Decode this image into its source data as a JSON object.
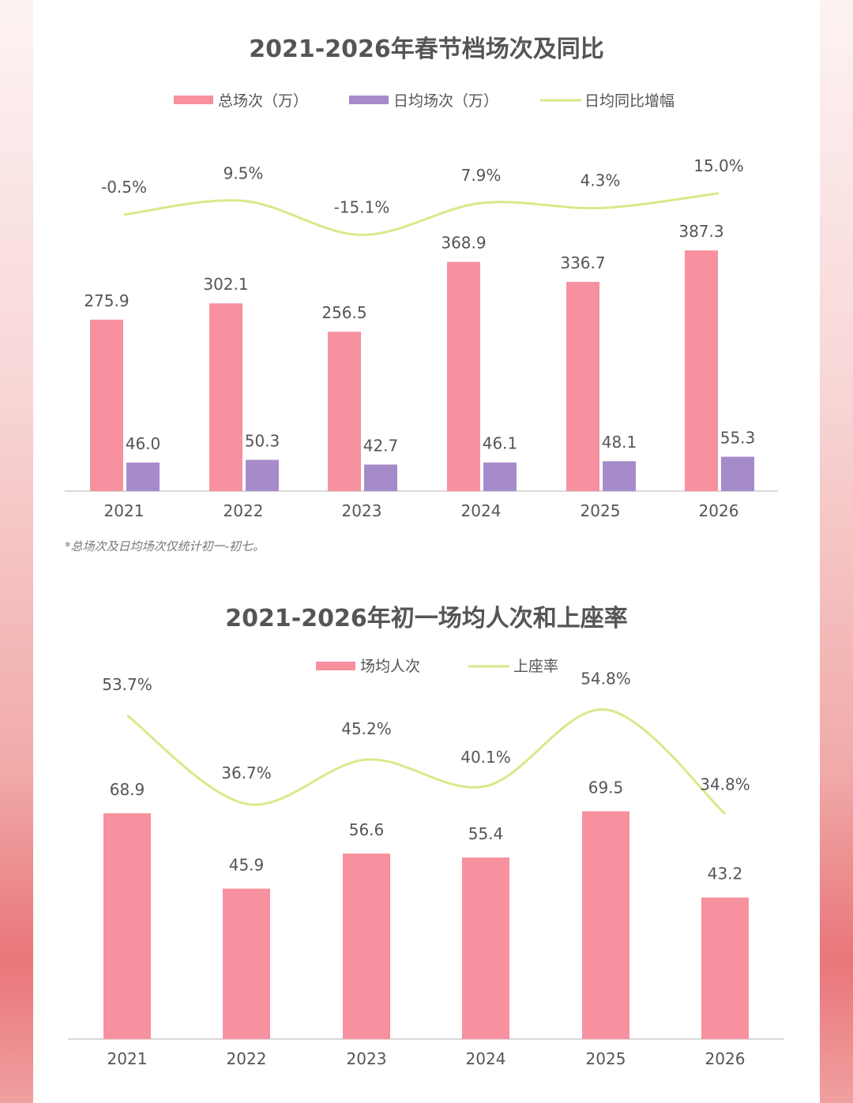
{
  "chart_data": [
    {
      "type": "bar+line",
      "title": "2021-2026年春节档场次及同比",
      "categories": [
        "2021",
        "2022",
        "2023",
        "2024",
        "2025",
        "2026"
      ],
      "series": [
        {
          "name": "总场次（万）",
          "kind": "bar",
          "color": "#f7909f",
          "values": [
            275.9,
            302.1,
            256.5,
            368.9,
            336.7,
            387.3
          ],
          "labels": [
            "275.9",
            "302.1",
            "256.5",
            "368.9",
            "336.7",
            "387.3"
          ]
        },
        {
          "name": "日均场次（万）",
          "kind": "bar",
          "color": "#a68bcb",
          "values": [
            46.0,
            50.3,
            42.7,
            46.1,
            48.1,
            55.3
          ],
          "labels": [
            "46.0",
            "50.3",
            "42.7",
            "46.1",
            "48.1",
            "55.3"
          ]
        },
        {
          "name": "日均同比增幅",
          "kind": "line",
          "color": "#dde78a",
          "values": [
            -0.5,
            9.5,
            -15.1,
            7.9,
            4.3,
            15.0
          ],
          "labels": [
            "-0.5%",
            "9.5%",
            "-15.1%",
            "7.9%",
            "4.3%",
            "15.0%"
          ]
        }
      ],
      "note": "*总场次及日均场次仅统计初一-初七。"
    },
    {
      "type": "bar+line",
      "title": "2021-2026年初一场均人次和上座率",
      "categories": [
        "2021",
        "2022",
        "2023",
        "2024",
        "2025",
        "2026"
      ],
      "series": [
        {
          "name": "场均人次",
          "kind": "bar",
          "color": "#f7909f",
          "values": [
            68.9,
            45.9,
            56.6,
            55.4,
            69.5,
            43.2
          ],
          "labels": [
            "68.9",
            "45.9",
            "56.6",
            "55.4",
            "69.5",
            "43.2"
          ]
        },
        {
          "name": "上座率",
          "kind": "line",
          "color": "#dde78a",
          "values": [
            53.7,
            36.7,
            45.2,
            40.1,
            54.8,
            34.8
          ],
          "labels": [
            "53.7%",
            "36.7%",
            "45.2%",
            "40.1%",
            "54.8%",
            "34.8%"
          ]
        }
      ]
    }
  ]
}
